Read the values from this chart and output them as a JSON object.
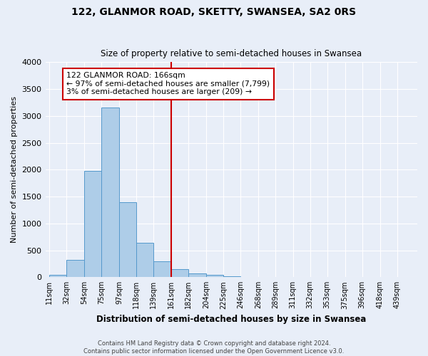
{
  "title": "122, GLANMOR ROAD, SKETTY, SWANSEA, SA2 0RS",
  "subtitle": "Size of property relative to semi-detached houses in Swansea",
  "xlabel": "Distribution of semi-detached houses by size in Swansea",
  "ylabel": "Number of semi-detached properties",
  "footer_line1": "Contains HM Land Registry data © Crown copyright and database right 2024.",
  "footer_line2": "Contains public sector information licensed under the Open Government Licence v3.0.",
  "bin_labels": [
    "11sqm",
    "32sqm",
    "54sqm",
    "75sqm",
    "97sqm",
    "118sqm",
    "139sqm",
    "161sqm",
    "182sqm",
    "204sqm",
    "225sqm",
    "246sqm",
    "268sqm",
    "289sqm",
    "311sqm",
    "332sqm",
    "353sqm",
    "375sqm",
    "396sqm",
    "418sqm",
    "439sqm"
  ],
  "bin_edges": [
    11,
    32,
    54,
    75,
    97,
    118,
    139,
    161,
    182,
    204,
    225,
    246,
    268,
    289,
    311,
    332,
    353,
    375,
    396,
    418,
    439
  ],
  "bar_heights": [
    50,
    320,
    1980,
    3160,
    1390,
    640,
    300,
    150,
    75,
    40,
    20,
    10,
    5,
    3,
    2,
    1,
    0,
    0,
    0,
    2
  ],
  "bar_color": "#aecde8",
  "bar_edge_color": "#5599cc",
  "vline_x": 161,
  "vline_color": "#cc0000",
  "ylim": [
    0,
    4000
  ],
  "yticks": [
    0,
    500,
    1000,
    1500,
    2000,
    2500,
    3000,
    3500,
    4000
  ],
  "annotation_title": "122 GLANMOR ROAD: 166sqm",
  "annotation_line1": "← 97% of semi-detached houses are smaller (7,799)",
  "annotation_line2": "3% of semi-detached houses are larger (209) →",
  "annotation_box_color": "#ffffff",
  "annotation_border_color": "#cc0000",
  "bg_color": "#e8eef8",
  "grid_color": "#ffffff"
}
